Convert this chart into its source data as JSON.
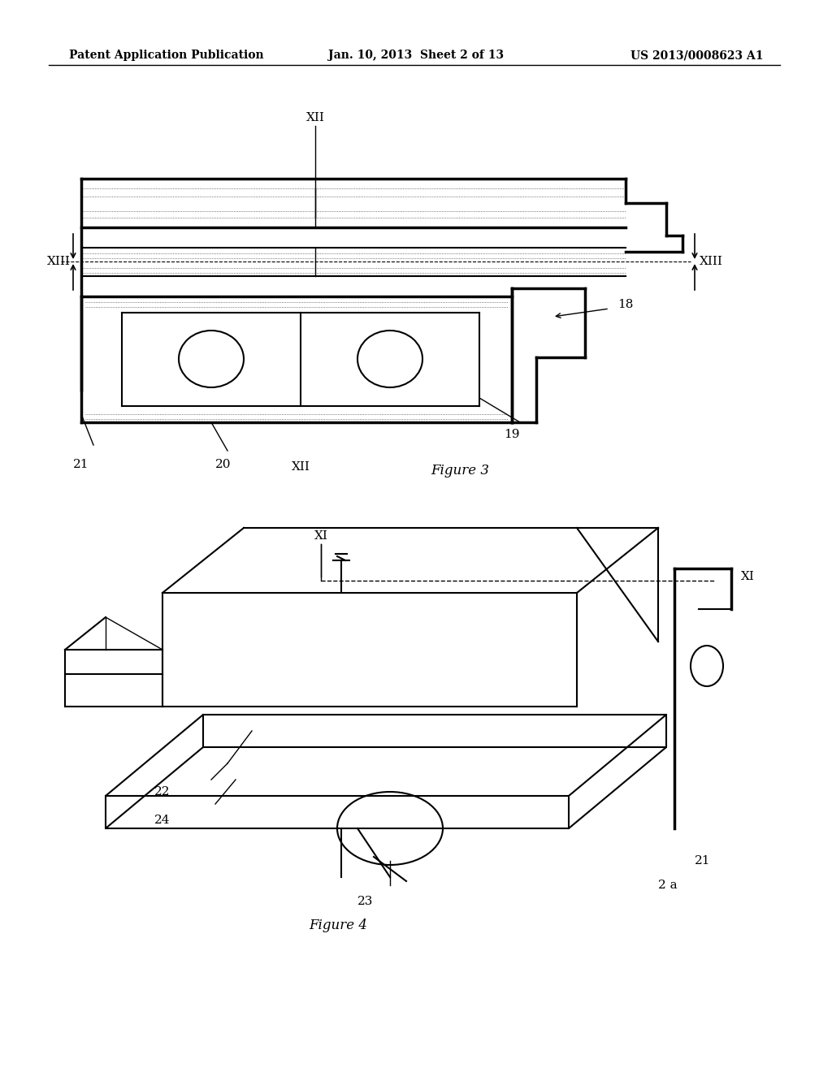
{
  "background_color": "#ffffff",
  "header_text_left": "Patent Application Publication",
  "header_text_center": "Jan. 10, 2013  Sheet 2 of 13",
  "header_text_right": "US 2013/0008623 A1",
  "fig3_caption": "Figure 3",
  "fig4_caption": "Figure 4",
  "fig3_labels": {
    "XII_top": "XII",
    "XIII_left": "XIII",
    "XIII_right": "XIII",
    "XII_bottom": "XII",
    "n18": "18",
    "n19": "19",
    "n20": "20",
    "n21": "21"
  },
  "fig4_labels": {
    "XI_top": "XI",
    "XI_right": "XI",
    "n21": "21",
    "n22": "22",
    "n23": "23",
    "n24": "24",
    "n2a": "2 a"
  }
}
